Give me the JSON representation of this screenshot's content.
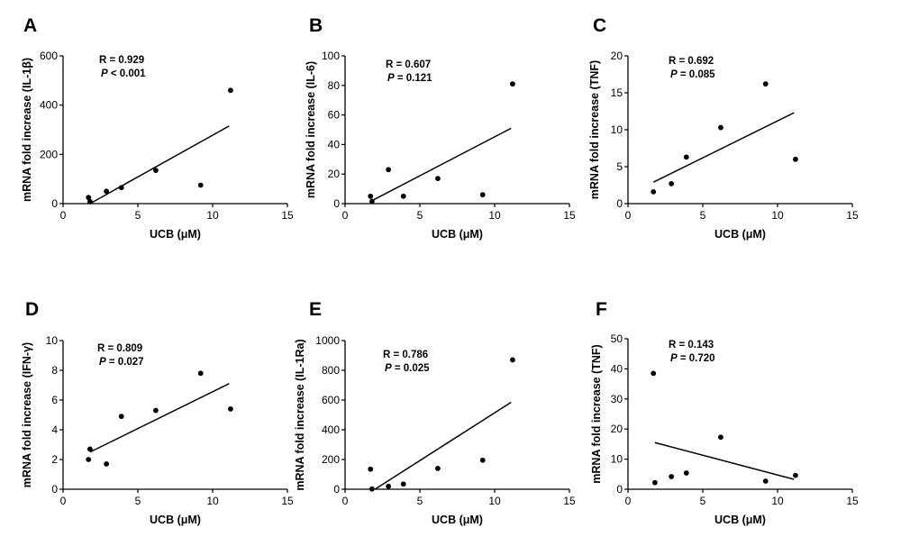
{
  "chart_data": [
    {
      "type": "scatter",
      "panel_label": "A",
      "xlabel": "UCB (μM)",
      "ylabel": "mRNA fold increase (IL-1β)",
      "xlim": [
        0,
        15
      ],
      "ylim": [
        0,
        600
      ],
      "xticks": [
        0,
        5,
        10,
        15
      ],
      "yticks": [
        0,
        200,
        400,
        600
      ],
      "points": [
        [
          1.7,
          25
        ],
        [
          1.8,
          8
        ],
        [
          2.9,
          50
        ],
        [
          3.9,
          65
        ],
        [
          6.2,
          135
        ],
        [
          9.2,
          75
        ],
        [
          11.2,
          460
        ]
      ],
      "fit_line": [
        [
          1.8,
          0
        ],
        [
          11.1,
          315
        ]
      ],
      "stats": {
        "r": "R = 0.929",
        "p_symbol": "P",
        "p_text": " < 0.001"
      }
    },
    {
      "type": "scatter",
      "panel_label": "B",
      "xlabel": "UCB (μM)",
      "ylabel": "mRNA fold increase (IL-6)",
      "xlim": [
        0,
        15
      ],
      "ylim": [
        0,
        100
      ],
      "xticks": [
        0,
        5,
        10,
        15
      ],
      "yticks": [
        0,
        20,
        40,
        60,
        80,
        100
      ],
      "points": [
        [
          1.7,
          5
        ],
        [
          1.8,
          1.5
        ],
        [
          2.9,
          23
        ],
        [
          3.9,
          5
        ],
        [
          6.2,
          17
        ],
        [
          9.2,
          6
        ],
        [
          11.2,
          81
        ]
      ],
      "fit_line": [
        [
          1.8,
          2
        ],
        [
          11.1,
          51
        ]
      ],
      "stats": {
        "r": "R = 0.607",
        "p_symbol": "P",
        "p_text": " = 0.121"
      }
    },
    {
      "type": "scatter",
      "panel_label": "C",
      "xlabel": "UCB (μM)",
      "ylabel": "mRNA fold increase (TNF)",
      "xlim": [
        0,
        15
      ],
      "ylim": [
        0,
        20
      ],
      "xticks": [
        0,
        5,
        10,
        15
      ],
      "yticks": [
        0,
        5,
        10,
        15,
        20
      ],
      "points": [
        [
          1.7,
          1.6
        ],
        [
          2.9,
          2.7
        ],
        [
          3.9,
          6.3
        ],
        [
          6.2,
          10.3
        ],
        [
          9.2,
          16.2
        ],
        [
          11.2,
          6
        ]
      ],
      "fit_line": [
        [
          1.7,
          2.9
        ],
        [
          11.1,
          12.3
        ]
      ],
      "stats": {
        "r": "R = 0.692",
        "p_symbol": "P",
        "p_text": " = 0.085"
      }
    },
    {
      "type": "scatter",
      "panel_label": "D",
      "xlabel": "UCB (μM)",
      "ylabel": "mRNA fold increase (IFN-γ)",
      "xlim": [
        0,
        15
      ],
      "ylim": [
        0,
        10
      ],
      "xticks": [
        0,
        5,
        10,
        15
      ],
      "yticks": [
        0,
        2,
        4,
        6,
        8,
        10
      ],
      "points": [
        [
          1.7,
          2.0
        ],
        [
          1.8,
          2.7
        ],
        [
          2.9,
          1.7
        ],
        [
          3.9,
          4.9
        ],
        [
          6.2,
          5.3
        ],
        [
          9.2,
          7.8
        ],
        [
          11.2,
          5.4
        ]
      ],
      "fit_line": [
        [
          1.8,
          2.5
        ],
        [
          11.1,
          7.1
        ]
      ],
      "stats": {
        "r": "R = 0.809",
        "p_symbol": "P",
        "p_text": " = 0.027"
      }
    },
    {
      "type": "scatter",
      "panel_label": "E",
      "xlabel": "UCB (μM)",
      "ylabel": "mRNA fold increase (IL-1Ra)",
      "xlim": [
        0,
        15
      ],
      "ylim": [
        0,
        1000
      ],
      "xticks": [
        0,
        5,
        10,
        15
      ],
      "yticks": [
        0,
        200,
        400,
        600,
        800,
        1000
      ],
      "points": [
        [
          1.7,
          135
        ],
        [
          1.8,
          2
        ],
        [
          2.9,
          20
        ],
        [
          3.9,
          35
        ],
        [
          6.2,
          140
        ],
        [
          9.2,
          195
        ],
        [
          11.2,
          870
        ]
      ],
      "fit_line": [
        [
          2.0,
          0
        ],
        [
          11.1,
          585
        ]
      ],
      "stats": {
        "r": "R = 0.786",
        "p_symbol": "P",
        "p_text": " = 0.025"
      }
    },
    {
      "type": "scatter",
      "panel_label": "F",
      "xlabel": "UCB (μM)",
      "ylabel": "mRNA fold increase (TNF)",
      "xlim": [
        0,
        15
      ],
      "ylim": [
        0,
        50
      ],
      "xticks": [
        0,
        5,
        10,
        15
      ],
      "yticks": [
        0,
        10,
        20,
        30,
        40,
        50
      ],
      "points": [
        [
          1.7,
          38.5
        ],
        [
          1.8,
          2.2
        ],
        [
          2.9,
          4.2
        ],
        [
          3.9,
          5.4
        ],
        [
          6.2,
          17.3
        ],
        [
          9.2,
          2.7
        ],
        [
          11.2,
          4.6
        ]
      ],
      "fit_line": [
        [
          1.8,
          15.5
        ],
        [
          11.1,
          3.3
        ]
      ],
      "stats": {
        "r": "R = 0.143",
        "p_symbol": "P",
        "p_text": " = 0.720"
      }
    }
  ]
}
